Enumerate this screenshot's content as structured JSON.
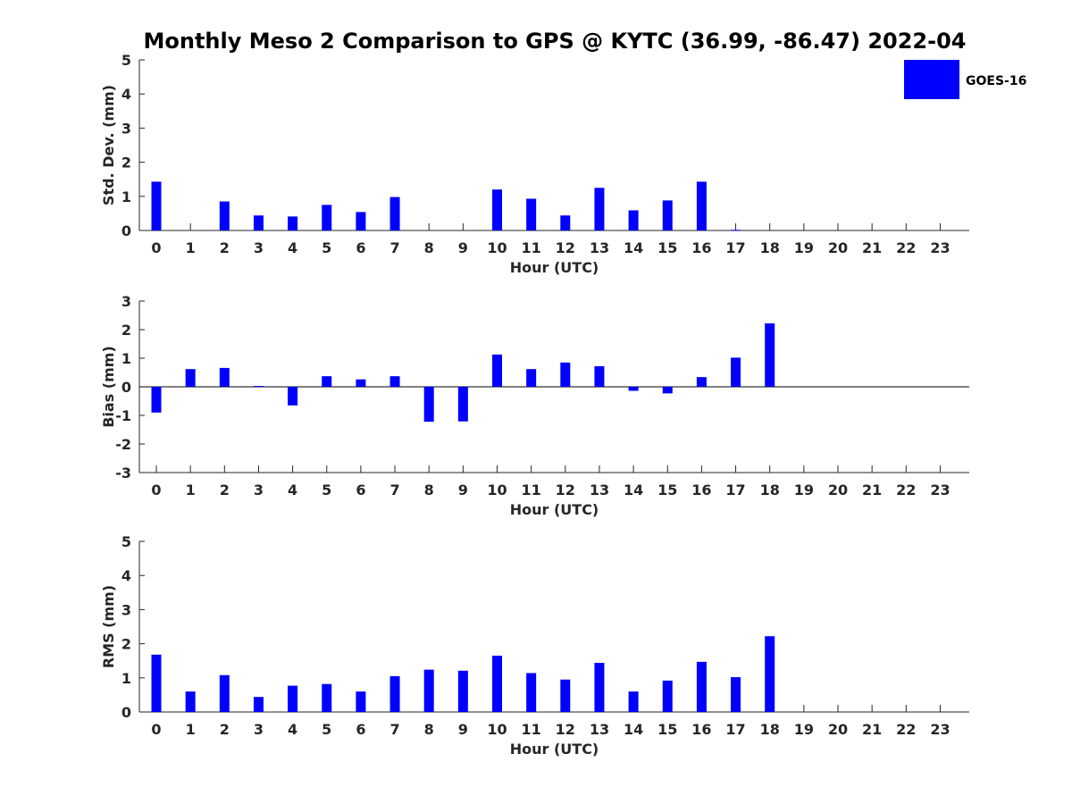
{
  "title": "Monthly Meso 2 Comparison to GPS @ KYTC (36.99, -86.47) 2022-04",
  "legend": {
    "label": "GOES-16",
    "color": "#0000ff",
    "placement": "top-right"
  },
  "chart_data": [
    {
      "type": "bar",
      "xlabel": "Hour (UTC)",
      "ylabel": "Std. Dev. (mm)",
      "ylim": [
        0,
        5
      ],
      "yticks": [
        "0",
        "1",
        "2",
        "3",
        "4",
        "5"
      ],
      "categories": [
        "0",
        "1",
        "2",
        "3",
        "4",
        "5",
        "6",
        "7",
        "8",
        "9",
        "10",
        "11",
        "12",
        "13",
        "14",
        "15",
        "16",
        "17",
        "18",
        "19",
        "20",
        "21",
        "22",
        "23"
      ],
      "series": [
        {
          "name": "GOES-16",
          "color": "#0000ff",
          "values": [
            1.43,
            0,
            0.85,
            0.44,
            0.41,
            0.75,
            0.54,
            0.98,
            0,
            0,
            1.2,
            0.93,
            0.44,
            1.25,
            0.59,
            0.88,
            1.43,
            0.02,
            null,
            null,
            null,
            null,
            null,
            null
          ]
        }
      ]
    },
    {
      "type": "bar",
      "xlabel": "Hour (UTC)",
      "ylabel": "Bias (mm)",
      "ylim": [
        -3,
        3
      ],
      "yticks": [
        "-3",
        "-2",
        "-1",
        "0",
        "1",
        "2",
        "3"
      ],
      "categories": [
        "0",
        "1",
        "2",
        "3",
        "4",
        "5",
        "6",
        "7",
        "8",
        "9",
        "10",
        "11",
        "12",
        "13",
        "14",
        "15",
        "16",
        "17",
        "18",
        "19",
        "20",
        "21",
        "22",
        "23"
      ],
      "series": [
        {
          "name": "GOES-16",
          "color": "#0000ff",
          "values": [
            -0.9,
            0.62,
            0.66,
            0.03,
            -0.65,
            0.37,
            0.26,
            0.37,
            -1.22,
            -1.21,
            1.13,
            0.62,
            0.85,
            0.72,
            -0.14,
            -0.23,
            0.34,
            1.02,
            2.22,
            null,
            null,
            null,
            null,
            null
          ]
        }
      ]
    },
    {
      "type": "bar",
      "xlabel": "Hour (UTC)",
      "ylabel": "RMS (mm)",
      "ylim": [
        0,
        5
      ],
      "yticks": [
        "0",
        "1",
        "2",
        "3",
        "4",
        "5"
      ],
      "categories": [
        "0",
        "1",
        "2",
        "3",
        "4",
        "5",
        "6",
        "7",
        "8",
        "9",
        "10",
        "11",
        "12",
        "13",
        "14",
        "15",
        "16",
        "17",
        "18",
        "19",
        "20",
        "21",
        "22",
        "23"
      ],
      "series": [
        {
          "name": "GOES-16",
          "color": "#0000ff",
          "values": [
            1.68,
            0.6,
            1.08,
            0.44,
            0.77,
            0.82,
            0.6,
            1.05,
            1.24,
            1.21,
            1.65,
            1.14,
            0.95,
            1.44,
            0.6,
            0.92,
            1.47,
            1.02,
            2.22,
            null,
            null,
            null,
            null,
            null
          ]
        }
      ]
    }
  ]
}
